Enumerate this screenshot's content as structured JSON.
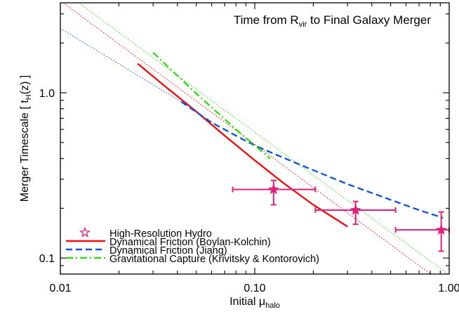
{
  "chart_data": {
    "type": "line",
    "title": "Time from R",
    "title_sub": "vir",
    "title_tail": " to Final Galaxy Merger",
    "ylabel": "Merger Timescale  [ t",
    "ylabel_sub": "H",
    "ylabel_tail": "(z) ]",
    "xlabel": "Initial μ",
    "xlabel_sub": "halo",
    "x_scale": "log",
    "y_scale": "log",
    "xlim": [
      0.01,
      1.0
    ],
    "ylim": [
      0.08,
      3.5
    ],
    "xticks": [
      {
        "value": 0.01,
        "label": "0.01"
      },
      {
        "value": 0.1,
        "label": "0.10"
      },
      {
        "value": 1.0,
        "label": "1.00"
      }
    ],
    "yticks": [
      {
        "value": 0.1,
        "label": "0.1"
      },
      {
        "value": 1.0,
        "label": "1.0"
      }
    ],
    "legend_position": "bottom-left",
    "series": [
      {
        "name": "High-Resolution Hydro",
        "kind": "points",
        "color": "#e0207a",
        "points": [
          {
            "x": 0.125,
            "y": 0.26,
            "xlo": 0.077,
            "xhi": 0.205,
            "ylo": 0.21,
            "yhi": 0.295
          },
          {
            "x": 0.33,
            "y": 0.195,
            "xlo": 0.205,
            "xhi": 0.53,
            "ylo": 0.16,
            "yhi": 0.22
          },
          {
            "x": 0.91,
            "y": 0.148,
            "xlo": 0.53,
            "xhi": 1.0,
            "ylo": 0.11,
            "yhi": 0.19
          }
        ]
      },
      {
        "name": "Dynamical Friction (Boylan-Kolchin)",
        "kind": "line",
        "color": "#ee1111",
        "dash": "solid",
        "x": [
          0.025,
          0.035,
          0.05,
          0.07,
          0.1,
          0.14,
          0.2,
          0.3
        ],
        "y": [
          1.5,
          1.08,
          0.77,
          0.55,
          0.39,
          0.285,
          0.21,
          0.155
        ]
      },
      {
        "name": "Dynamical Friction (Jiang)",
        "kind": "line",
        "color": "#1155dd",
        "dash": "dashed",
        "x": [
          0.042,
          0.06,
          0.08,
          0.1,
          0.13,
          0.2,
          0.3,
          0.5,
          0.7,
          0.93
        ],
        "y": [
          0.88,
          0.66,
          0.55,
          0.48,
          0.42,
          0.34,
          0.28,
          0.225,
          0.195,
          0.175
        ]
      },
      {
        "name": "Gravitational Capture (Krivitsky & Kontorovich)",
        "kind": "line",
        "color": "#33dd11",
        "dash": "dashdot",
        "x": [
          0.03,
          0.05,
          0.08,
          0.12
        ],
        "y": [
          1.75,
          0.99,
          0.6,
          0.4
        ]
      }
    ],
    "extrapolations": [
      {
        "color": "#ee1111",
        "x": [
          0.01,
          1.0
        ],
        "y": [
          3.6,
          0.066
        ]
      },
      {
        "color": "#1155dd",
        "x": [
          0.01,
          0.042
        ],
        "y": [
          2.45,
          0.88
        ]
      },
      {
        "color": "#33dd11",
        "x": [
          0.012,
          1.0
        ],
        "y": [
          3.6,
          0.079
        ]
      }
    ]
  }
}
